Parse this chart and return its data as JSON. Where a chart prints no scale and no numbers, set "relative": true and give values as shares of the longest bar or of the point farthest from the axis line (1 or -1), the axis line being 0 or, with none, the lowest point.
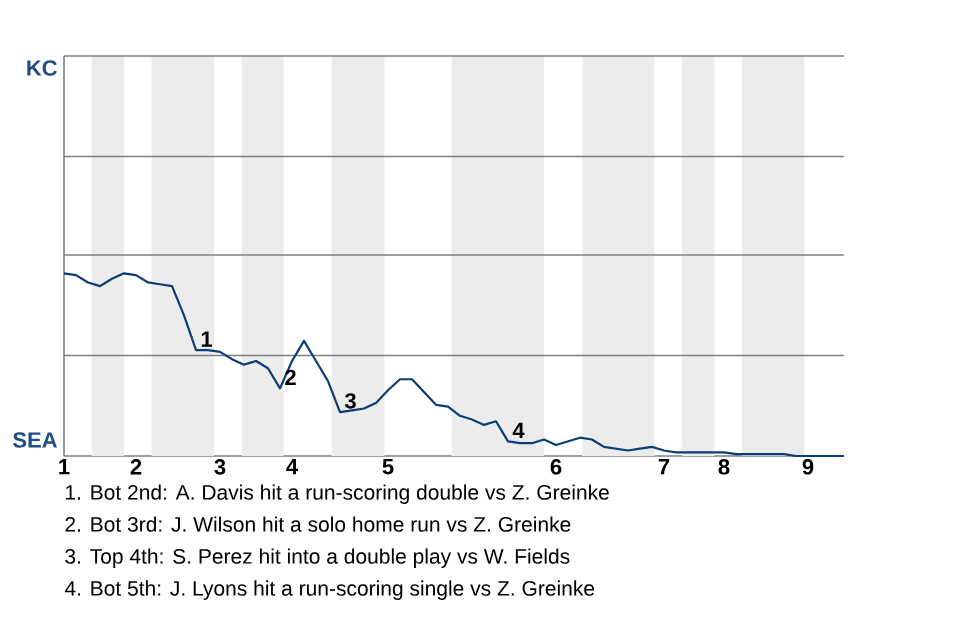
{
  "chart_data": {
    "type": "line",
    "relative": true,
    "categories": [
      "1",
      null,
      null,
      null,
      null,
      null,
      "2",
      null,
      null,
      null,
      null,
      null,
      null,
      "3",
      null,
      null,
      null,
      null,
      null,
      "4",
      null,
      null,
      null,
      null,
      null,
      null,
      null,
      "5",
      null,
      null,
      null,
      null,
      null,
      null,
      null,
      null,
      null,
      null,
      null,
      null,
      null,
      "6",
      null,
      null,
      null,
      null,
      null,
      null,
      null,
      null,
      "7",
      null,
      null,
      null,
      null,
      "8",
      null,
      null,
      null,
      null,
      null,
      null,
      "9",
      null,
      null,
      null
    ],
    "ref_lines": [
      {
        "axis": "y",
        "value": 0.55,
        "color": "#7f7f7f"
      },
      {
        "axis": "y",
        "value": 1.1,
        "color": "#7f7f7f"
      },
      {
        "axis": "y",
        "value": 1.64,
        "color": "#7f7f7f"
      }
    ],
    "series": [
      {
        "color": "#0b3d78",
        "values": [
          1,
          0.99,
          0.95,
          0.93,
          0.97,
          1,
          0.99,
          0.95,
          0.94,
          0.93,
          0.77,
          0.58,
          0.58,
          0.57,
          0.53,
          0.5,
          0.52,
          0.48,
          0.37,
          0.52,
          0.63,
          0.52,
          0.41,
          0.24,
          0.25,
          0.26,
          0.29,
          0.36,
          0.42,
          0.42,
          0.35,
          0.28,
          0.27,
          0.22,
          0.2,
          0.17,
          0.19,
          0.08,
          0.07,
          0.07,
          0.09,
          0.06,
          0.08,
          0.1,
          0.09,
          0.05,
          0.04,
          0.03,
          0.04,
          0.05,
          0.03,
          0.02,
          0.02,
          0.02,
          0.02,
          0.02,
          0.01,
          0.01,
          0.01,
          0.01,
          0.01,
          0,
          0,
          0,
          0,
          0
        ]
      }
    ],
    "annotations": [
      "KC",
      "SEA",
      {
        "text": "1",
        "y": 0.58
      },
      {
        "text": "2",
        "y": 0.37
      },
      {
        "text": "3",
        "y": 0.24
      },
      {
        "text": "4",
        "y": 0.08
      },
      "1. Bot 2nd: A. Davis hit a run-scoring double vs Z. Greinke",
      "2. Bot 3rd: J. Wilson hit a solo home run vs Z. Greinke",
      "3. Top 4th: S. Perez hit into a double play vs W. Fields",
      "4. Bot 5th: J. Lyons hit a run-scoring single vs Z. Greinke"
    ]
  }
}
